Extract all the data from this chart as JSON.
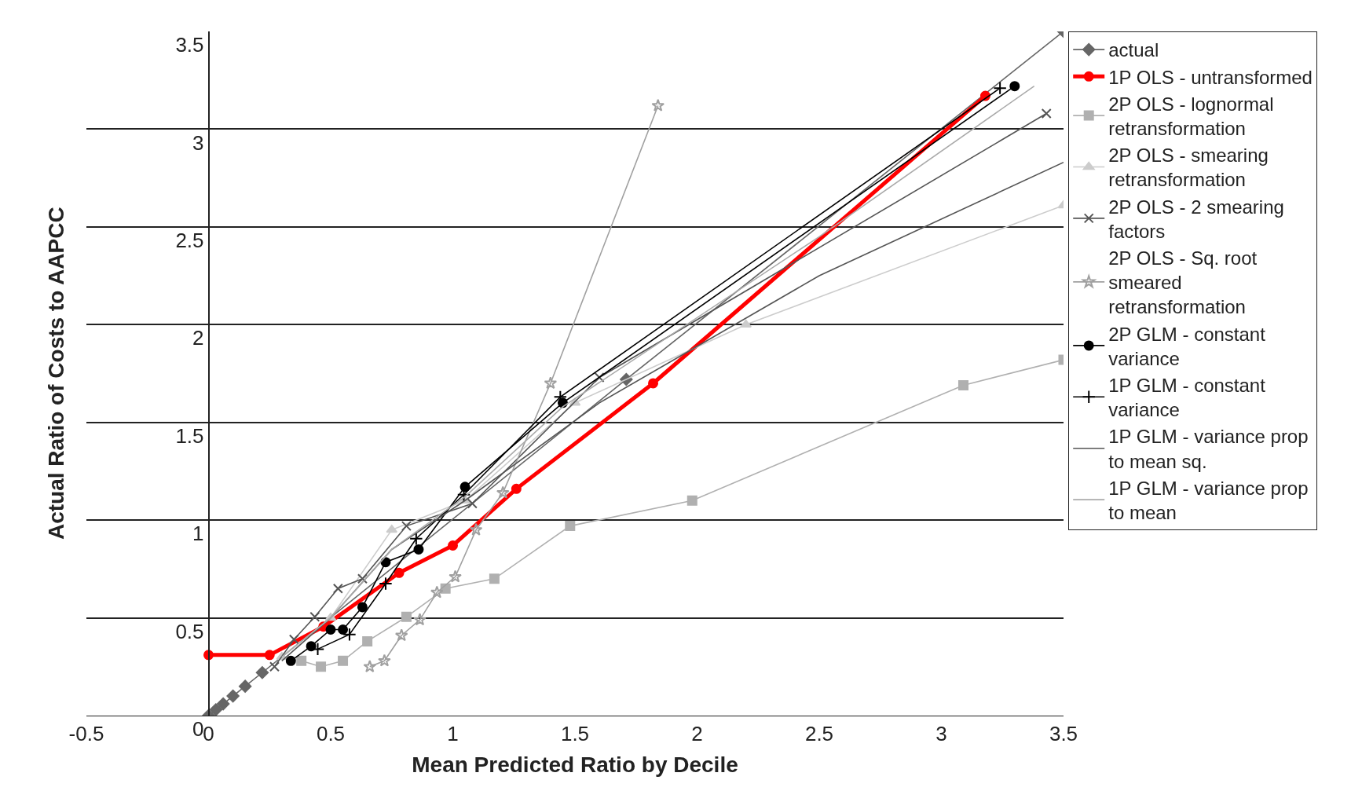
{
  "chart_data": {
    "type": "line",
    "xlabel": "Mean Predicted Ratio by Decile",
    "ylabel": "Actual Ratio of Costs to AAPCC",
    "xlim": [
      -0.5,
      3.5
    ],
    "xticks": [
      -0.5,
      0,
      0.5,
      1,
      1.5,
      2,
      2.5,
      3,
      3.5
    ],
    "ylim": [
      0,
      3.5
    ],
    "yticks": [
      0,
      0.5,
      1,
      1.5,
      2,
      2.5,
      3,
      3.5
    ],
    "grid": "y",
    "legend": "top right",
    "series": [
      {
        "name": "actual",
        "color": "#666666",
        "marker": "diamond",
        "x": [
          0,
          0.03,
          0.06,
          0.1,
          0.15,
          0.22,
          1.71,
          3.5
        ],
        "values": [
          0,
          0.03,
          0.06,
          0.1,
          0.15,
          0.22,
          1.72,
          3.5
        ]
      },
      {
        "name": "1P OLS - untransformed",
        "color": "#ff0000",
        "marker": "circle",
        "x": [
          0,
          0.25,
          0.47,
          0.78,
          1.0,
          1.26,
          1.82,
          3.18
        ],
        "values": [
          0.31,
          0.31,
          0.455,
          0.73,
          0.87,
          1.16,
          1.7,
          3.17
        ]
      },
      {
        "name": "2P OLS - lognormal retransformation",
        "color": "#b0b0b0",
        "marker": "square",
        "x": [
          0.38,
          0.46,
          0.55,
          0.65,
          0.81,
          0.97,
          1.17,
          1.48,
          1.98,
          3.09,
          3.5
        ],
        "values": [
          0.28,
          0.25,
          0.28,
          0.38,
          0.505,
          0.65,
          0.7,
          0.97,
          1.1,
          1.69,
          1.82
        ]
      },
      {
        "name": "2P OLS - smearing retransformation",
        "color": "#cccccc",
        "marker": "triangle",
        "x": [
          0.3,
          0.5,
          0.75,
          1.05,
          1.5,
          2.2,
          3.5
        ],
        "values": [
          0.3,
          0.5,
          0.95,
          1.1,
          1.6,
          2.0,
          2.61
        ]
      },
      {
        "name": "2P OLS - 2 smearing factors",
        "color": "#555555",
        "marker": "x",
        "x": [
          0.27,
          0.35,
          0.435,
          0.53,
          0.63,
          0.81,
          1.08,
          1.6,
          3.43
        ],
        "values": [
          0.25,
          0.39,
          0.505,
          0.65,
          0.7,
          0.97,
          1.085,
          1.73,
          3.08
        ]
      },
      {
        "name": "2P OLS - Sq. root smeared retransformation",
        "color": "#a0a0a0",
        "marker": "star",
        "x": [
          0.66,
          0.72,
          0.79,
          0.865,
          0.935,
          1.01,
          1.095,
          1.205,
          1.4,
          1.84
        ],
        "values": [
          0.25,
          0.28,
          0.41,
          0.49,
          0.63,
          0.71,
          0.95,
          1.14,
          1.7,
          3.12
        ]
      },
      {
        "name": "2P GLM - constant variance",
        "color": "#000000",
        "marker": "circle",
        "x": [
          0.337,
          0.42,
          0.5,
          0.55,
          0.63,
          0.725,
          0.86,
          1.05,
          1.45,
          3.3
        ],
        "values": [
          0.28,
          0.355,
          0.44,
          0.44,
          0.555,
          0.785,
          0.85,
          1.17,
          1.6,
          3.22
        ]
      },
      {
        "name": "1P GLM - constant variance",
        "color": "#000000",
        "marker": "cross",
        "x": [
          0.447,
          0.577,
          0.725,
          0.85,
          1.045,
          1.44,
          3.24
        ],
        "values": [
          0.34,
          0.415,
          0.675,
          0.905,
          1.13,
          1.63,
          3.21
        ]
      },
      {
        "name": "1P GLM - variance prop to mean sq.",
        "color": "#555555",
        "marker": "none",
        "x": [
          0.3,
          0.5,
          0.75,
          1.05,
          1.6,
          2.5,
          3.5
        ],
        "values": [
          0.28,
          0.5,
          0.85,
          1.1,
          1.6,
          2.25,
          2.83
        ]
      },
      {
        "name": "1P GLM - variance prop to mean",
        "color": "#aaaaaa",
        "marker": "none",
        "x": [
          0.3,
          0.5,
          0.75,
          1.05,
          1.45,
          2.5,
          3.38
        ],
        "values": [
          0.3,
          0.5,
          0.85,
          1.12,
          1.58,
          2.45,
          3.22
        ]
      }
    ]
  }
}
